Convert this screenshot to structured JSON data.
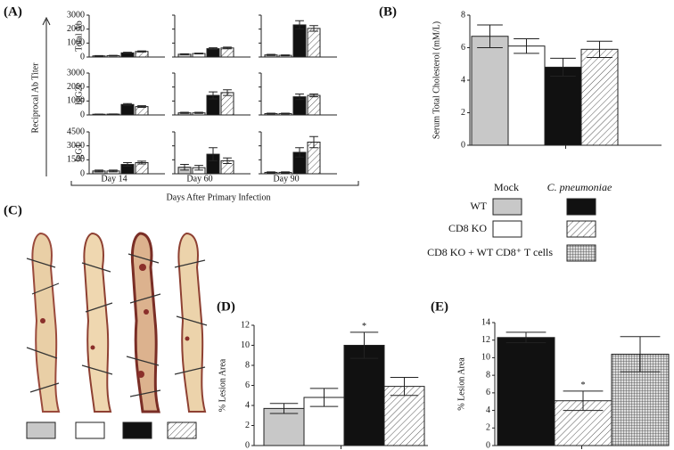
{
  "chart_data": [
    {
      "type": "bar-grid",
      "panel": "(A)",
      "ylabel": "Reciprocal Ab Titer",
      "xlabel": "Days After Primary Infection",
      "columns": [
        "Day 14",
        "Day 60",
        "Day 90"
      ],
      "colors": [
        "#c8c8c8",
        "#ffffff",
        "#111111",
        "#ffffff"
      ],
      "patterns": [
        "solid",
        "solid",
        "solid",
        "hatched"
      ],
      "rows": [
        {
          "name": "Total Ab",
          "ylim": [
            0,
            3000
          ],
          "yticks": [
            0,
            1000,
            2000,
            3000
          ],
          "values": [
            [
              80,
              100,
              300,
              400
            ],
            [
              200,
              250,
              600,
              650
            ],
            [
              150,
              120,
              2300,
              2050
            ]
          ],
          "errors": [
            [
              20,
              20,
              40,
              40
            ],
            [
              30,
              30,
              60,
              60
            ],
            [
              40,
              30,
              300,
              200
            ]
          ]
        },
        {
          "name": "IgG2c",
          "ylim": [
            0,
            3000
          ],
          "yticks": [
            0,
            1000,
            2000,
            3000
          ],
          "values": [
            [
              50,
              60,
              750,
              600
            ],
            [
              150,
              150,
              1400,
              1600
            ],
            [
              100,
              100,
              1300,
              1400
            ]
          ],
          "errors": [
            [
              10,
              10,
              60,
              60
            ],
            [
              40,
              40,
              250,
              200
            ],
            [
              30,
              30,
              200,
              100
            ]
          ]
        },
        {
          "name": "IgG1",
          "ylim": [
            0,
            4500
          ],
          "yticks": [
            0,
            1500,
            3000,
            4500
          ],
          "values": [
            [
              300,
              300,
              1000,
              1200
            ],
            [
              700,
              650,
              2100,
              1400
            ],
            [
              150,
              150,
              2300,
              3400
            ]
          ],
          "errors": [
            [
              100,
              100,
              200,
              150
            ],
            [
              300,
              250,
              700,
              300
            ],
            [
              50,
              50,
              500,
              600
            ]
          ]
        }
      ]
    },
    {
      "type": "bar",
      "panel": "(B)",
      "ylabel": "Serum Total Cholesterol (mM/L)",
      "values": [
        6.7,
        6.1,
        4.8,
        5.9
      ],
      "errors": [
        0.7,
        0.45,
        0.55,
        0.5
      ],
      "colors": [
        "#c8c8c8",
        "#ffffff",
        "#111111",
        "#ffffff"
      ],
      "patterns": [
        "solid",
        "solid",
        "solid",
        "hatched"
      ],
      "ylim": [
        0,
        8
      ],
      "yticks": [
        0,
        2,
        4,
        6,
        8
      ]
    },
    {
      "type": "bar",
      "panel": "(D)",
      "ylabel": "% Lesion Area",
      "values": [
        3.7,
        4.8,
        10,
        5.9
      ],
      "errors": [
        0.5,
        0.9,
        1.3,
        0.9
      ],
      "significance": [
        null,
        null,
        "*",
        null
      ],
      "colors": [
        "#c8c8c8",
        "#ffffff",
        "#111111",
        "#ffffff"
      ],
      "patterns": [
        "solid",
        "solid",
        "solid",
        "hatched"
      ],
      "ylim": [
        0,
        12
      ],
      "yticks": [
        0,
        2,
        4,
        6,
        8,
        10,
        12
      ]
    },
    {
      "type": "bar",
      "panel": "(E)",
      "ylabel": "% Lesion Area",
      "values": [
        12.3,
        5.1,
        10.4
      ],
      "errors": [
        0.6,
        1.1,
        2.0
      ],
      "significance": [
        null,
        "*",
        null
      ],
      "colors": [
        "#111111",
        "#ffffff",
        "#ffffff"
      ],
      "patterns": [
        "solid",
        "hatched",
        "crosshatched"
      ],
      "ylim": [
        0,
        14
      ],
      "yticks": [
        0,
        2,
        4,
        6,
        8,
        10,
        12,
        14
      ]
    }
  ],
  "photo": {
    "panel": "(C)"
  },
  "legend": {
    "headers": [
      "Mock",
      "C. pneumoniae"
    ],
    "rows": [
      "WT",
      "CD8 KO",
      "CD8 KO + WT CD8⁺ T cells"
    ]
  }
}
